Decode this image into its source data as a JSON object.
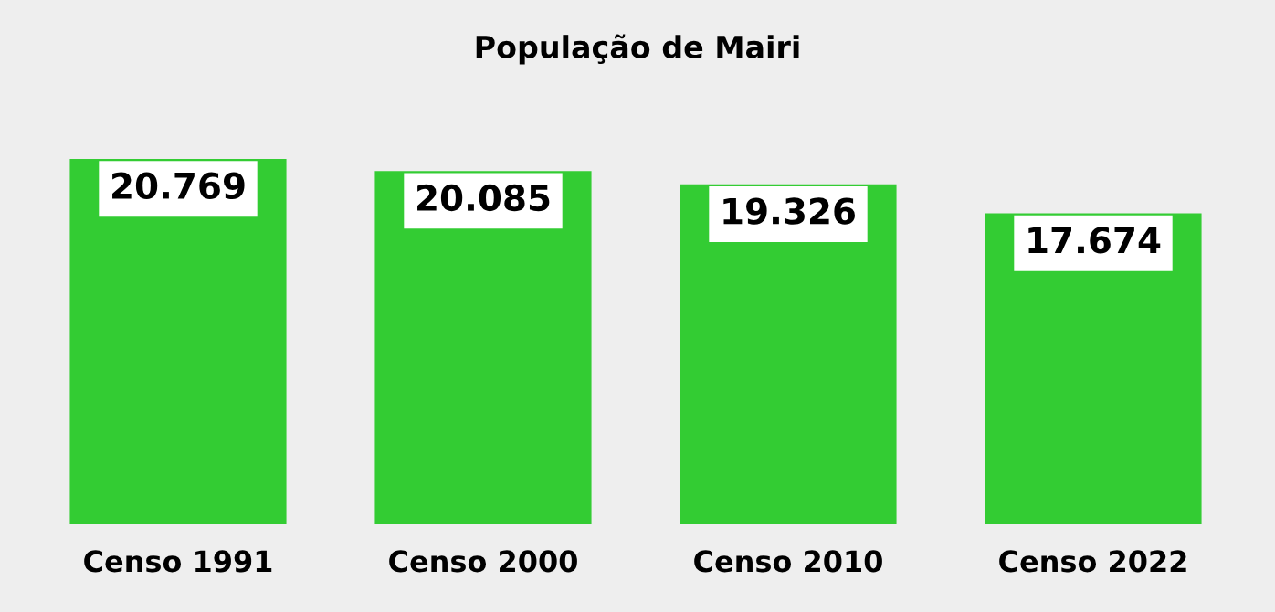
{
  "chart_data": {
    "type": "bar",
    "title": "População de Mairi",
    "categories": [
      "Censo 1991",
      "Censo 2000",
      "Censo 2010",
      "Censo 2022"
    ],
    "values": [
      20769,
      20085,
      19326,
      17674
    ],
    "value_labels": [
      "20.769",
      "20.085",
      "19.326",
      "17.674"
    ],
    "color": "#33cc33",
    "tick_labels": "x",
    "grid": false,
    "legend": false
  }
}
